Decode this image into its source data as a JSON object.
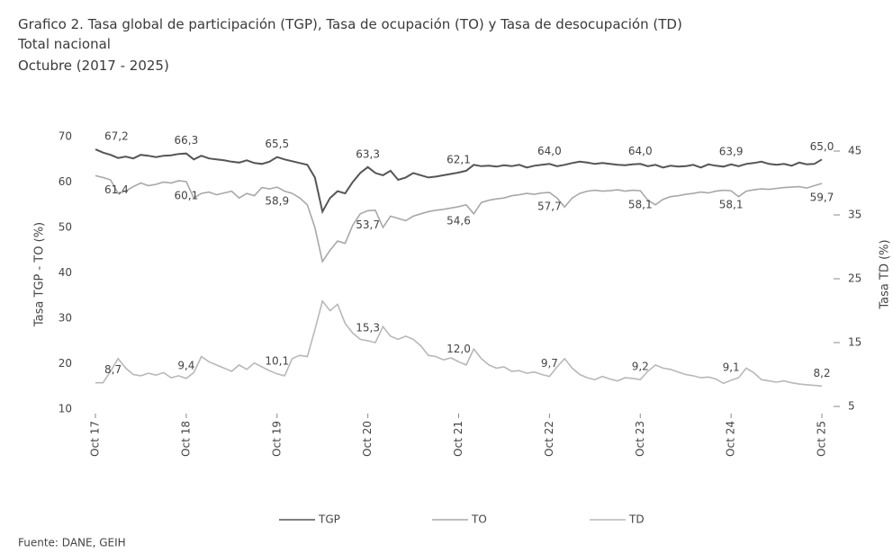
{
  "chart_data": {
    "type": "line",
    "title": "Grafico 2. Tasa global de participación (TGP), Tasa de ocupación (TO) y Tasa de desocupación (TD)",
    "subtitle": "Total nacional",
    "period": "Octubre (2017 - 2025)",
    "ylabel": "Tasa TGP - TO (%)",
    "y2label": "Tasa TD (%)",
    "source": "Fuente: DANE, GEIH",
    "ylim": [
      10,
      70
    ],
    "yticks": [
      10,
      20,
      30,
      40,
      50,
      60,
      70
    ],
    "y2lim": [
      5,
      45
    ],
    "y2ticks": [
      5,
      15,
      25,
      35,
      45
    ],
    "categories": [
      "Oct 17",
      null,
      null,
      null,
      null,
      null,
      null,
      null,
      null,
      null,
      null,
      null,
      "Oct 18",
      null,
      null,
      null,
      null,
      null,
      null,
      null,
      null,
      null,
      null,
      null,
      "Oct 19",
      null,
      null,
      null,
      null,
      null,
      null,
      null,
      null,
      null,
      null,
      null,
      "Oct 20",
      null,
      null,
      null,
      null,
      null,
      null,
      null,
      null,
      null,
      null,
      null,
      "Oct 21",
      null,
      null,
      null,
      null,
      null,
      null,
      null,
      null,
      null,
      null,
      null,
      "Oct 22",
      null,
      null,
      null,
      null,
      null,
      null,
      null,
      null,
      null,
      null,
      null,
      "Oct 23",
      null,
      null,
      null,
      null,
      null,
      null,
      null,
      null,
      null,
      null,
      null,
      "Oct 24",
      null,
      null,
      null,
      null,
      null,
      null,
      null,
      null,
      null,
      null,
      null,
      "Oct 25"
    ],
    "series": [
      {
        "name": "TGP",
        "color": "#555555",
        "values": [
          67.2,
          66.5,
          66.0,
          65.3,
          65.6,
          65.2,
          66.0,
          65.8,
          65.5,
          65.8,
          65.9,
          66.2,
          66.3,
          65.0,
          65.8,
          65.2,
          65.0,
          64.8,
          64.5,
          64.3,
          64.8,
          64.2,
          64.0,
          64.5,
          65.5,
          65.0,
          64.6,
          64.2,
          63.8,
          61.0,
          53.5,
          56.5,
          58.0,
          57.5,
          60.0,
          62.0,
          63.3,
          62.0,
          61.5,
          62.5,
          60.5,
          61.0,
          62.0,
          61.5,
          61.0,
          61.2,
          61.5,
          61.8,
          62.1,
          62.5,
          63.8,
          63.5,
          63.6,
          63.4,
          63.7,
          63.5,
          63.8,
          63.2,
          63.6,
          63.8,
          64.0,
          63.5,
          63.8,
          64.2,
          64.5,
          64.3,
          64.0,
          64.2,
          64.0,
          63.8,
          63.7,
          63.9,
          64.0,
          63.5,
          63.8,
          63.2,
          63.6,
          63.4,
          63.5,
          63.8,
          63.2,
          63.9,
          63.6,
          63.4,
          63.9,
          63.5,
          64.0,
          64.2,
          64.5,
          64.0,
          63.8,
          64.0,
          63.6,
          64.3,
          63.9,
          64.0,
          65.0
        ],
        "value_labels": [
          "67,2",
          null,
          null,
          null,
          null,
          null,
          null,
          null,
          null,
          null,
          null,
          null,
          "66,3",
          null,
          null,
          null,
          null,
          null,
          null,
          null,
          null,
          null,
          null,
          null,
          "65,5",
          null,
          null,
          null,
          null,
          null,
          null,
          null,
          null,
          null,
          null,
          null,
          "63,3",
          null,
          null,
          null,
          null,
          null,
          null,
          null,
          null,
          null,
          null,
          null,
          "62,1",
          null,
          null,
          null,
          null,
          null,
          null,
          null,
          null,
          null,
          null,
          null,
          "64,0",
          null,
          null,
          null,
          null,
          null,
          null,
          null,
          null,
          null,
          null,
          null,
          "64,0",
          null,
          null,
          null,
          null,
          null,
          null,
          null,
          null,
          null,
          null,
          null,
          "63,9",
          null,
          null,
          null,
          null,
          null,
          null,
          null,
          null,
          null,
          null,
          null,
          "65,0"
        ]
      },
      {
        "name": "TO",
        "color": "#a8a8a8",
        "values": [
          61.4,
          61.0,
          60.5,
          57.5,
          58.0,
          59.0,
          59.8,
          59.2,
          59.5,
          60.0,
          59.8,
          60.3,
          60.1,
          56.5,
          57.5,
          57.8,
          57.2,
          57.6,
          58.0,
          56.5,
          57.5,
          57.0,
          58.8,
          58.5,
          58.9,
          58.0,
          57.5,
          56.5,
          55.0,
          50.0,
          42.5,
          45.0,
          47.0,
          46.5,
          50.5,
          53.0,
          53.7,
          53.8,
          50.0,
          52.5,
          52.0,
          51.5,
          52.5,
          53.0,
          53.5,
          53.8,
          54.0,
          54.3,
          54.6,
          55.0,
          53.0,
          55.5,
          56.0,
          56.3,
          56.5,
          57.0,
          57.2,
          57.5,
          57.3,
          57.6,
          57.7,
          56.5,
          54.5,
          56.5,
          57.5,
          58.0,
          58.2,
          58.0,
          58.1,
          58.3,
          58.0,
          58.2,
          58.1,
          56.0,
          55.0,
          56.2,
          56.8,
          57.0,
          57.3,
          57.5,
          57.8,
          57.6,
          58.0,
          58.2,
          58.1,
          56.8,
          58.0,
          58.3,
          58.5,
          58.4,
          58.6,
          58.8,
          58.9,
          59.0,
          58.7,
          59.2,
          59.7
        ],
        "value_labels": [
          "61,4",
          null,
          null,
          null,
          null,
          null,
          null,
          null,
          null,
          null,
          null,
          null,
          "60,1",
          null,
          null,
          null,
          null,
          null,
          null,
          null,
          null,
          null,
          null,
          null,
          "58,9",
          null,
          null,
          null,
          null,
          null,
          null,
          null,
          null,
          null,
          null,
          null,
          "53,7",
          null,
          null,
          null,
          null,
          null,
          null,
          null,
          null,
          null,
          null,
          null,
          "54,6",
          null,
          null,
          null,
          null,
          null,
          null,
          null,
          null,
          null,
          null,
          null,
          "57,7",
          null,
          null,
          null,
          null,
          null,
          null,
          null,
          null,
          null,
          null,
          null,
          "58,1",
          null,
          null,
          null,
          null,
          null,
          null,
          null,
          null,
          null,
          null,
          null,
          "58,1",
          null,
          null,
          null,
          null,
          null,
          null,
          null,
          null,
          null,
          null,
          null,
          "59,7"
        ]
      },
      {
        "name": "TD",
        "color": "#b8b8b8",
        "axis": "y2",
        "values": [
          8.7,
          8.7,
          10.5,
          12.5,
          11.0,
          10.0,
          9.8,
          10.2,
          9.9,
          10.3,
          9.5,
          9.8,
          9.4,
          10.3,
          12.8,
          12.0,
          11.5,
          11.0,
          10.5,
          11.5,
          10.8,
          11.8,
          11.2,
          10.6,
          10.1,
          9.8,
          12.5,
          13.0,
          12.8,
          17.0,
          21.5,
          20.0,
          21.0,
          18.0,
          16.5,
          15.5,
          15.3,
          15.0,
          17.5,
          16.0,
          15.5,
          16.0,
          15.5,
          14.5,
          13.0,
          12.8,
          12.3,
          12.6,
          12.0,
          11.5,
          14.0,
          12.5,
          11.5,
          11.0,
          11.2,
          10.5,
          10.6,
          10.2,
          10.4,
          10.0,
          9.7,
          11.2,
          12.5,
          11.0,
          10.0,
          9.5,
          9.2,
          9.7,
          9.3,
          9.0,
          9.5,
          9.4,
          9.2,
          10.5,
          11.5,
          11.0,
          10.8,
          10.4,
          10.0,
          9.8,
          9.5,
          9.6,
          9.3,
          8.6,
          9.1,
          9.5,
          11.0,
          10.3,
          9.2,
          9.0,
          8.8,
          9.0,
          8.7,
          8.5,
          8.4,
          8.3,
          8.2
        ],
        "value_labels": [
          "8,7",
          null,
          null,
          null,
          null,
          null,
          null,
          null,
          null,
          null,
          null,
          null,
          "9,4",
          null,
          null,
          null,
          null,
          null,
          null,
          null,
          null,
          null,
          null,
          null,
          "10,1",
          null,
          null,
          null,
          null,
          null,
          null,
          null,
          null,
          null,
          null,
          null,
          "15,3",
          null,
          null,
          null,
          null,
          null,
          null,
          null,
          null,
          null,
          null,
          null,
          "12,0",
          null,
          null,
          null,
          null,
          null,
          null,
          null,
          null,
          null,
          null,
          null,
          "9,7",
          null,
          null,
          null,
          null,
          null,
          null,
          null,
          null,
          null,
          null,
          null,
          "9,2",
          null,
          null,
          null,
          null,
          null,
          null,
          null,
          null,
          null,
          null,
          null,
          "9,1",
          null,
          null,
          null,
          null,
          null,
          null,
          null,
          null,
          null,
          null,
          null,
          "8,2"
        ]
      }
    ]
  }
}
